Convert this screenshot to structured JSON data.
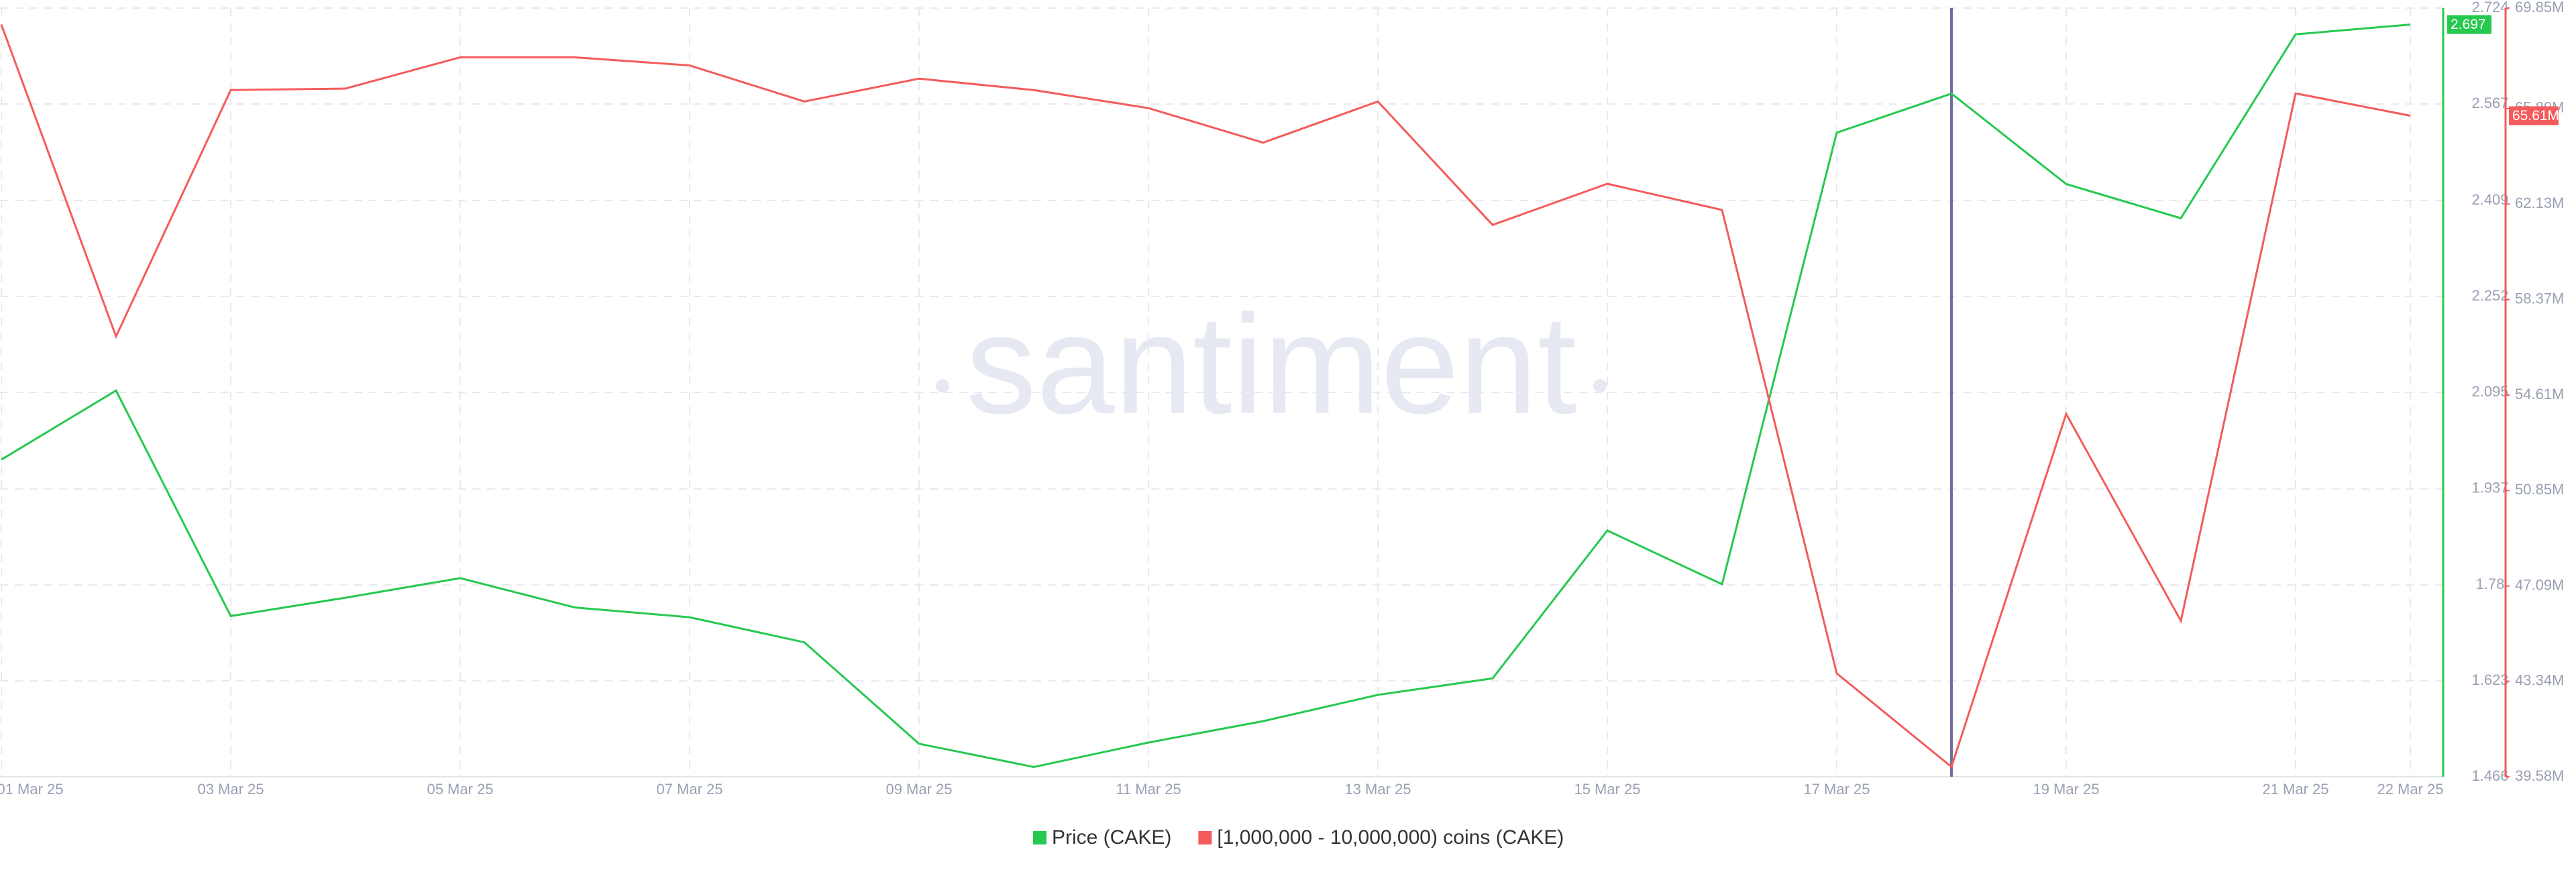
{
  "chart_data": {
    "type": "line",
    "watermark": "santiment",
    "categories": [
      "01 Mar 25",
      null,
      "03 Mar 25",
      null,
      "05 Mar 25",
      null,
      "07 Mar 25",
      null,
      "09 Mar 25",
      null,
      "11 Mar 25",
      null,
      "13 Mar 25",
      null,
      "15 Mar 25",
      null,
      "17 Mar 25",
      null,
      "19 Mar 25",
      null,
      "21 Mar 25",
      "22 Mar 25"
    ],
    "series": [
      {
        "name": "Price (CAKE)",
        "color": "#26c94f",
        "axis": "y",
        "values": [
          1.985,
          2.098,
          1.729,
          1.759,
          1.791,
          1.743,
          1.727,
          1.686,
          1.52,
          1.482,
          1.522,
          1.557,
          1.6,
          1.627,
          1.869,
          1.781,
          2.52,
          2.584,
          2.436,
          2.38,
          2.681,
          2.697
        ],
        "value_labels": [
          null,
          null,
          null,
          null,
          null,
          null,
          null,
          null,
          null,
          null,
          null,
          null,
          null,
          null,
          null,
          null,
          null,
          null,
          null,
          null,
          null,
          "2.697"
        ]
      },
      {
        "name": "[1,000,000 - 10,000,000) coins (CAKE)",
        "color": "#f45b5b",
        "axis": "y2",
        "values": [
          69.2,
          56.92,
          66.62,
          66.68,
          67.91,
          67.91,
          67.59,
          66.17,
          67.07,
          66.62,
          65.91,
          64.55,
          66.17,
          61.31,
          62.93,
          61.9,
          43.65,
          39.97,
          53.87,
          45.72,
          66.49,
          65.61
        ],
        "value_labels": [
          null,
          null,
          null,
          null,
          null,
          null,
          null,
          null,
          null,
          null,
          null,
          null,
          null,
          null,
          null,
          null,
          null,
          null,
          null,
          null,
          null,
          "65.61M"
        ]
      }
    ],
    "ylim": [
      1.466,
      2.724
    ],
    "yticks": [
      1.466,
      1.623,
      1.78,
      1.937,
      2.095,
      2.252,
      2.409,
      2.567,
      2.724
    ],
    "y2lim": [
      39.58,
      69.85
    ],
    "y2ticks": [
      {
        "value": 39.58,
        "label": "39.58M"
      },
      {
        "value": 43.34,
        "label": "43.34M"
      },
      {
        "value": 47.09,
        "label": "47.09M"
      },
      {
        "value": 50.85,
        "label": "50.85M"
      },
      {
        "value": 54.61,
        "label": "54.61M"
      },
      {
        "value": 58.37,
        "label": "58.37M"
      },
      {
        "value": 62.13,
        "label": "62.13M"
      },
      {
        "value": 65.89,
        "label": "65.89M"
      },
      {
        "value": 69.85,
        "label": "69.85M"
      }
    ],
    "grid": true
  }
}
